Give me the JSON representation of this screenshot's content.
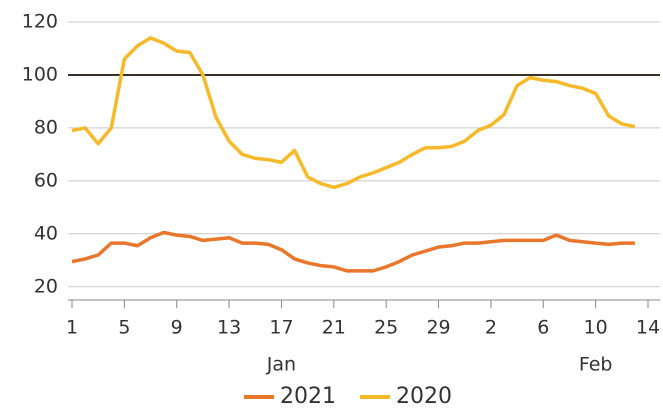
{
  "chart_data": {
    "type": "line",
    "x": [
      1,
      2,
      3,
      4,
      5,
      6,
      7,
      8,
      9,
      10,
      11,
      12,
      13,
      14,
      15,
      16,
      17,
      18,
      19,
      20,
      21,
      22,
      23,
      24,
      25,
      26,
      27,
      28,
      29,
      30,
      31,
      32,
      33,
      34,
      35,
      36,
      37,
      38,
      39,
      40,
      41,
      42,
      43,
      44
    ],
    "series": [
      {
        "name": "2021",
        "color": "#e8762b",
        "values": [
          29.5,
          30.5,
          32,
          36.5,
          36.5,
          35.5,
          38.5,
          40.5,
          39.5,
          39,
          37.5,
          38,
          38.5,
          36.5,
          36.5,
          36,
          34,
          30.5,
          29,
          28,
          27.5,
          26,
          26,
          26,
          27.5,
          29.5,
          32,
          33.5,
          35,
          35.5,
          36.5,
          36.5,
          37,
          37.5,
          37.5,
          37.5,
          37.5,
          39.5,
          37.5,
          37,
          36.5,
          36,
          36.5,
          36.5
        ]
      },
      {
        "name": "2020",
        "color": "#f7b928",
        "values": [
          79,
          80,
          74,
          80,
          106,
          111,
          114,
          112,
          109,
          108.5,
          100,
          84,
          75,
          70,
          68.5,
          68,
          67,
          71.5,
          61.5,
          59,
          57.5,
          59,
          61.5,
          63,
          65,
          67,
          70,
          72.5,
          72.5,
          73,
          75,
          79,
          81,
          85,
          96,
          99,
          98,
          97.5,
          96,
          95,
          93,
          84.5,
          81.5,
          80.5
        ]
      }
    ],
    "xlim": [
      1,
      45
    ],
    "xticks": [
      1,
      5,
      9,
      13,
      17,
      21,
      25,
      29,
      {
        "value": 33,
        "label": "2"
      },
      {
        "value": 37,
        "label": "6"
      },
      {
        "value": 41,
        "label": "10"
      },
      {
        "value": 45,
        "label": "14"
      }
    ],
    "month_labels": [
      {
        "value": 17,
        "label": "Jan"
      },
      {
        "value": 41,
        "label": "Feb"
      }
    ],
    "ylim": [
      15,
      120
    ],
    "yticks": [
      20,
      40,
      60,
      80,
      100,
      120
    ],
    "reference_line": 100,
    "grid": true
  }
}
